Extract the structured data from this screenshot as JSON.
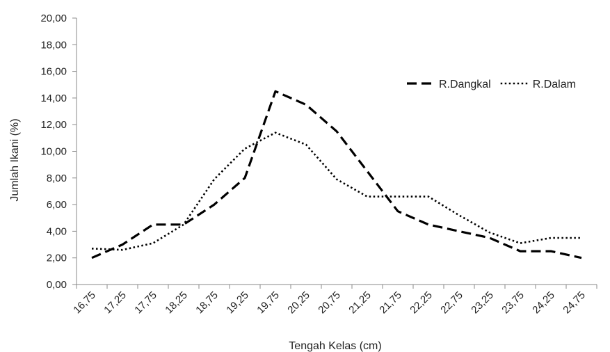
{
  "chart_data": {
    "type": "line",
    "title": "",
    "xlabel": "Tengah Kelas (cm)",
    "ylabel": "Jumlah Ikani (%)",
    "ylim": [
      0,
      20
    ],
    "y_ticks": [
      "0,00",
      "2,00",
      "4,00",
      "6,00",
      "8,00",
      "10,00",
      "12,00",
      "14,00",
      "16,00",
      "18,00",
      "20,00"
    ],
    "categories": [
      "16,75",
      "17,25",
      "17,75",
      "18,25",
      "18,75",
      "19,25",
      "19,75",
      "20,25",
      "20,75",
      "21,25",
      "21,75",
      "22,25",
      "22,75",
      "23,25",
      "23,75",
      "24,25",
      "24,75"
    ],
    "series": [
      {
        "name": "R.Dangkal",
        "style": "dashed",
        "color": "#000000",
        "values": [
          2.0,
          3.0,
          4.5,
          4.5,
          6.0,
          8.0,
          14.5,
          13.5,
          11.5,
          8.5,
          5.5,
          4.5,
          4.0,
          3.5,
          2.5,
          2.5,
          2.0
        ]
      },
      {
        "name": "R.Dalam",
        "style": "dotted",
        "color": "#000000",
        "values": [
          2.7,
          2.6,
          3.1,
          4.5,
          7.9,
          10.2,
          11.4,
          10.5,
          7.9,
          6.6,
          6.6,
          6.6,
          5.2,
          3.9,
          3.1,
          3.5,
          3.5
        ]
      }
    ],
    "legend_position": "right",
    "grid": false
  }
}
